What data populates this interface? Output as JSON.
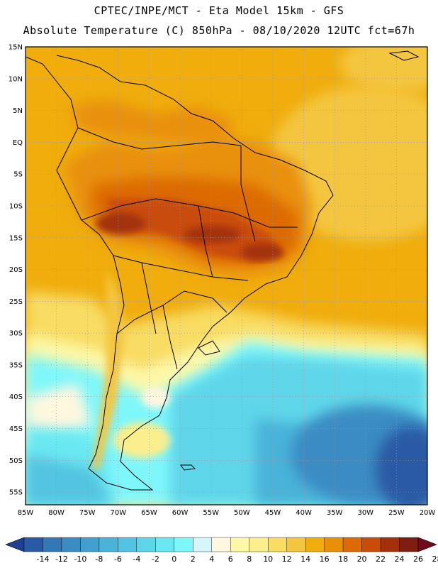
{
  "header": {
    "line1": "CPTEC/INPE/MCT  -   Eta Model 15km  -  GFS",
    "line2": "Absolute Temperature (C) 850hPa - 08/10/2020 12UTC fct=67h"
  },
  "map": {
    "lat_labels": [
      "15N",
      "10N",
      "5N",
      "EQ",
      "5S",
      "10S",
      "15S",
      "20S",
      "25S",
      "30S",
      "35S",
      "40S",
      "45S",
      "50S",
      "55S"
    ],
    "lon_labels": [
      "85W",
      "80W",
      "75W",
      "70W",
      "65W",
      "60W",
      "55W",
      "50W",
      "45W",
      "40W",
      "35W",
      "30W",
      "25W",
      "20W"
    ],
    "lat_range": [
      15,
      -57
    ],
    "lon_range": [
      -85,
      -20
    ],
    "grid": true
  },
  "colorbar": {
    "labels": [
      "-14",
      "-12",
      "-10",
      "-8",
      "-6",
      "-4",
      "-2",
      "0",
      "2",
      "4",
      "6",
      "8",
      "10",
      "12",
      "14",
      "16",
      "18",
      "20",
      "22",
      "24",
      "26",
      "28"
    ],
    "colors": [
      "#1f3f8f",
      "#2a5aa5",
      "#3377b6",
      "#3a8cc4",
      "#41a0cf",
      "#49b3d9",
      "#52c4e1",
      "#5ed6ea",
      "#6ae8f2",
      "#7ef7fb",
      "#d6f6fb",
      "#fff7df",
      "#fdf8a8",
      "#fbee8c",
      "#f8dc64",
      "#f4c640",
      "#f0ad0c",
      "#e9900a",
      "#dd6a05",
      "#c94c08",
      "#a3300b",
      "#7d1e10",
      "#6e0b1c"
    ]
  }
}
